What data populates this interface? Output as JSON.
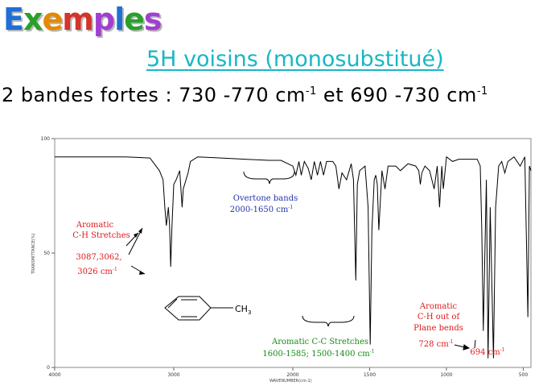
{
  "header": {
    "title_letters": [
      "E",
      "x",
      "e",
      "m",
      "p",
      "l",
      "e",
      "s"
    ],
    "subtitle": "5H voisins (monosubstitué)",
    "bands_lead": "2 bandes fortes :  730 -770 cm",
    "bands_mid": " et 690 -730 cm",
    "bands_exp": "-1"
  },
  "chart_data": {
    "type": "line",
    "xlabel": "WAVENUMBER(cm-1)",
    "ylabel": "TRANSMITTANCE(%)",
    "xlim": [
      4000,
      450
    ],
    "ylim": [
      0,
      100
    ],
    "x_ticks": [
      "4000",
      "3000",
      "2000",
      "1500",
      "1000",
      "500"
    ],
    "y_ticks": [
      "100",
      "50",
      "0"
    ],
    "x": [
      4000,
      3800,
      3600,
      3400,
      3200,
      3120,
      3090,
      3075,
      3062,
      3045,
      3035,
      3026,
      3015,
      3000,
      2980,
      2950,
      2930,
      2920,
      2880,
      2860,
      2800,
      2600,
      2400,
      2200,
      2100,
      2000,
      1980,
      1960,
      1945,
      1925,
      1900,
      1880,
      1860,
      1840,
      1820,
      1800,
      1780,
      1740,
      1720,
      1700,
      1680,
      1650,
      1620,
      1605,
      1590,
      1580,
      1565,
      1530,
      1510,
      1496,
      1485,
      1470,
      1460,
      1450,
      1440,
      1420,
      1400,
      1380,
      1330,
      1300,
      1250,
      1200,
      1180,
      1170,
      1160,
      1140,
      1110,
      1080,
      1060,
      1045,
      1030,
      1020,
      1000,
      960,
      920,
      880,
      840,
      800,
      780,
      770,
      760,
      740,
      729,
      715,
      694,
      680,
      660,
      640,
      620,
      600,
      560,
      520,
      490,
      470,
      460,
      450
    ],
    "y": [
      92,
      92,
      92,
      92,
      91.5,
      86,
      82,
      70,
      62,
      70,
      62,
      44,
      62,
      80,
      82,
      86,
      70,
      78,
      85,
      90,
      92,
      91.5,
      91,
      90.5,
      90.5,
      88,
      84,
      90,
      84,
      90,
      87,
      82,
      90,
      84,
      90,
      84,
      90,
      90,
      88,
      78,
      85,
      82,
      89,
      82,
      38,
      80,
      86,
      88,
      70,
      10,
      60,
      82,
      84,
      80,
      60,
      86,
      78,
      88,
      88,
      86,
      89,
      88,
      86,
      80,
      85,
      88,
      86,
      78,
      88,
      70,
      88,
      78,
      92,
      90,
      91,
      91,
      91,
      91,
      88,
      60,
      16,
      82,
      4,
      70,
      4,
      70,
      88,
      90,
      85,
      90,
      92,
      88,
      92,
      22,
      88,
      86
    ],
    "annotations": {
      "ch_stretch": [
        "Aromatic",
        "C-H Stretches",
        "3087,3062,",
        "3026 cm",
        "-1"
      ],
      "overtone": [
        "Overtone bands",
        "2000-1650 cm",
        "-1"
      ],
      "cc_stretch": [
        "Aromatic C-C Stretches",
        "1600-1585; 1500-1400 cm",
        "-1"
      ],
      "oop": [
        "Aromatic",
        "C-H out of",
        "Plane bends",
        "728 cm",
        "-1"
      ],
      "oop2": [
        "694 cm",
        "-1"
      ],
      "molecule_label": "CH"
    },
    "colors": {
      "red": "#e01818",
      "blue": "#2233aa",
      "green": "#138a13",
      "line": "#000000",
      "grid": "#888888"
    }
  }
}
